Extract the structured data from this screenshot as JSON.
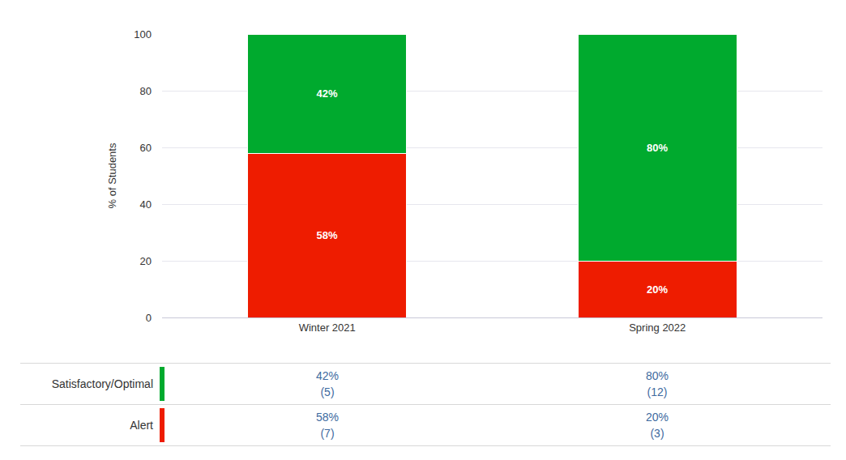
{
  "chart_data": {
    "type": "bar",
    "stacked": true,
    "data_labels": true,
    "grid": true,
    "ylabel": "% of Students",
    "categories": [
      "Winter 2021",
      "Spring 2022"
    ],
    "ylim": [
      0,
      100
    ],
    "yticks": [
      0,
      20,
      40,
      60,
      80,
      100
    ],
    "series": [
      {
        "name": "Alert",
        "color": "#ee1c00",
        "values": [
          58,
          20
        ],
        "value_labels": [
          "58%",
          "20%"
        ],
        "count_labels": [
          "(7)",
          "(3)"
        ]
      },
      {
        "name": "Satisfactory/Optimal",
        "color": "#00aa2e",
        "values": [
          42,
          80
        ],
        "value_labels": [
          "42%",
          "80%"
        ],
        "count_labels": [
          "(5)",
          "(12)"
        ]
      }
    ]
  }
}
